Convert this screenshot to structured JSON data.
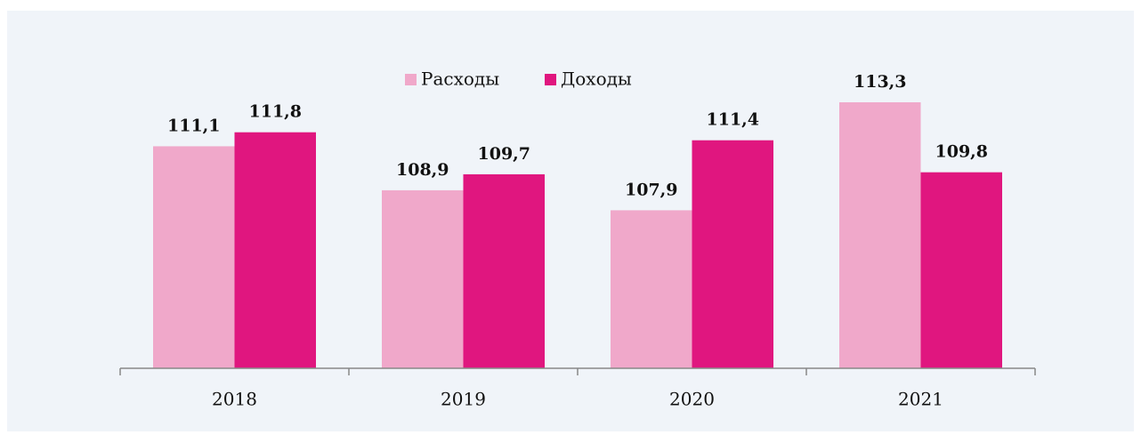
{
  "chart_data": {
    "type": "bar",
    "categories": [
      "2018",
      "2019",
      "2020",
      "2021"
    ],
    "series": [
      {
        "name": "Расходы",
        "color": "#f0a8ca",
        "values": [
          111.1,
          108.9,
          107.9,
          113.3
        ],
        "value_labels": [
          "111,1",
          "108,9",
          "107,9",
          "113,3"
        ]
      },
      {
        "name": "Доходы",
        "color": "#e0167f",
        "values": [
          111.8,
          109.7,
          111.4,
          109.8
        ],
        "value_labels": [
          "111,8",
          "109,7",
          "111,4",
          "109,8"
        ]
      }
    ],
    "ylim": [
      100,
      114.5
    ],
    "legend": "top"
  }
}
